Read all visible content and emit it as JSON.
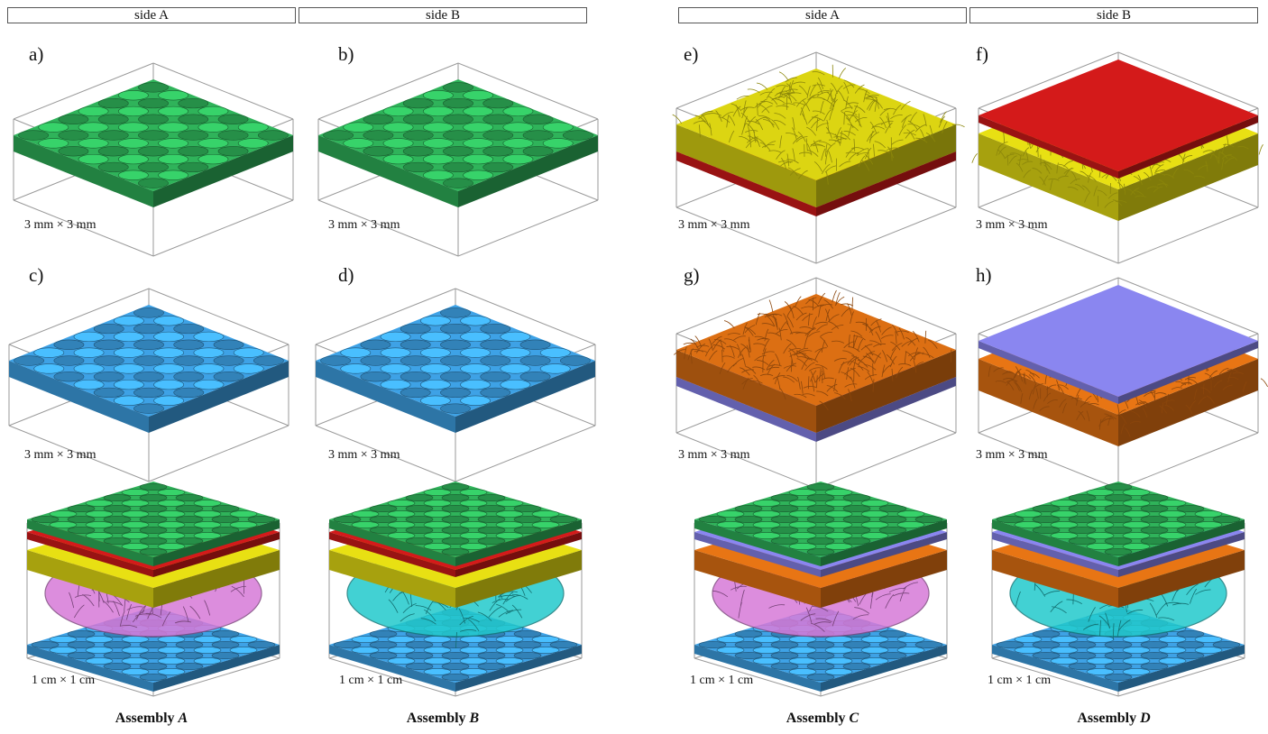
{
  "headers": {
    "left_side_a": "side A",
    "left_side_b": "side B",
    "right_side_a": "side A",
    "right_side_b": "side B"
  },
  "panels": [
    {
      "label": "a)",
      "scale": "3 mm × 3 mm",
      "material": "woven fabric",
      "color": "#2fb35a"
    },
    {
      "label": "b)",
      "scale": "3 mm × 3 mm",
      "material": "woven fabric",
      "color": "#2fb35a"
    },
    {
      "label": "c)",
      "scale": "3 mm × 3 mm",
      "material": "woven fabric",
      "color": "#3ea2e6"
    },
    {
      "label": "d)",
      "scale": "3 mm × 3 mm",
      "material": "woven fabric",
      "color": "#3ea2e6"
    },
    {
      "label": "e)",
      "scale": "3 mm × 3 mm",
      "material": "nonwoven on membrane",
      "color": "#e8e013",
      "base": "#d41a1a"
    },
    {
      "label": "f)",
      "scale": "3 mm × 3 mm",
      "material": "membrane on nonwoven",
      "color": "#d41a1a",
      "base": "#e8e013"
    },
    {
      "label": "g)",
      "scale": "3 mm × 3 mm",
      "material": "nonwoven on membrane",
      "color": "#e87514",
      "base": "#8a86f0"
    },
    {
      "label": "h)",
      "scale": "3 mm × 3 mm",
      "material": "membrane on nonwoven",
      "color": "#8a86f0",
      "base": "#e87514"
    }
  ],
  "assemblies": [
    {
      "prefix": "Assembly ",
      "name": "A",
      "scale": "1 cm × 1 cm"
    },
    {
      "prefix": "Assembly ",
      "name": "B",
      "scale": "1 cm × 1 cm"
    },
    {
      "prefix": "Assembly ",
      "name": "C",
      "scale": "1 cm × 1 cm"
    },
    {
      "prefix": "Assembly ",
      "name": "D",
      "scale": "1 cm × 1 cm"
    }
  ],
  "colors": {
    "green": "#2fb35a",
    "blue": "#3ea2e6",
    "red": "#d41a1a",
    "yellow": "#e8e013",
    "orange": "#e87514",
    "lavender": "#8a86f0",
    "magenta": "#d77ad8",
    "cyan": "#22c9cc",
    "outline": "#9a9a9a"
  }
}
